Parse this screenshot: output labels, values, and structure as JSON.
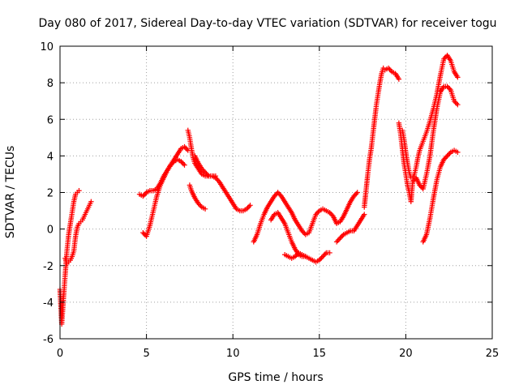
{
  "chart_data": {
    "type": "scatter",
    "title": "Day 080 of 2017, Sidereal Day-to-day VTEC variation (SDTVAR) for receiver togu",
    "xlabel": "GPS time / hours",
    "ylabel": "SDTVAR / TECUs",
    "xlim": [
      0,
      25
    ],
    "ylim": [
      -6,
      10
    ],
    "xticks": [
      "0",
      "5",
      "10",
      "15",
      "20",
      "25"
    ],
    "yticks": [
      "-6",
      "-4",
      "-2",
      "0",
      "2",
      "4",
      "6",
      "8",
      "10"
    ],
    "grid": true,
    "marker": "+",
    "color": "#ff0000",
    "segments": [
      {
        "x": [
          0.0,
          0.1,
          0.2,
          0.3,
          0.4,
          0.5,
          0.6,
          0.7,
          0.8,
          0.9,
          1.0,
          1.1
        ],
        "y": [
          -3.3,
          -5.2,
          -3.8,
          -2.5,
          -1.2,
          -0.3,
          0.3,
          0.9,
          1.5,
          1.9,
          2.0,
          2.1
        ]
      },
      {
        "x": [
          0.3,
          0.4,
          0.5,
          0.6,
          0.7,
          0.8,
          0.9,
          1.0,
          1.1,
          1.2,
          1.3,
          1.4,
          1.5,
          1.6,
          1.7,
          1.8
        ],
        "y": [
          -1.6,
          -1.9,
          -1.8,
          -1.7,
          -1.5,
          -1.2,
          -0.4,
          0.1,
          0.3,
          0.4,
          0.5,
          0.7,
          0.9,
          1.1,
          1.3,
          1.5
        ]
      },
      {
        "x": [
          4.6,
          4.8,
          5.0,
          5.2,
          5.4,
          5.6,
          5.8,
          6.0,
          6.2,
          6.4,
          6.6,
          6.8,
          7.0,
          7.2,
          7.4
        ],
        "y": [
          1.9,
          1.8,
          2.0,
          2.1,
          2.1,
          2.2,
          2.5,
          2.9,
          3.2,
          3.5,
          3.8,
          4.1,
          4.4,
          4.5,
          4.3
        ]
      },
      {
        "x": [
          4.8,
          5.0,
          5.2,
          5.4,
          5.6,
          5.8,
          6.0,
          6.2,
          6.4,
          6.6,
          6.8,
          7.0,
          7.2
        ],
        "y": [
          -0.2,
          -0.4,
          0.2,
          1.0,
          1.8,
          2.4,
          2.8,
          3.2,
          3.5,
          3.7,
          3.8,
          3.7,
          3.5
        ]
      },
      {
        "x": [
          7.4,
          7.5,
          7.6,
          7.7,
          7.8,
          8.0,
          8.2,
          8.4,
          8.6,
          8.8,
          9.0,
          9.2,
          9.4,
          9.6,
          9.8,
          10.0,
          10.2,
          10.4,
          10.6,
          10.8,
          11.0
        ],
        "y": [
          5.4,
          5.0,
          4.4,
          3.9,
          3.6,
          3.3,
          3.0,
          2.9,
          2.9,
          2.9,
          2.8,
          2.6,
          2.3,
          2.0,
          1.7,
          1.4,
          1.1,
          1.0,
          1.0,
          1.1,
          1.3
        ]
      },
      {
        "x": [
          7.5,
          7.6,
          7.8,
          8.0,
          8.2,
          8.4
        ],
        "y": [
          2.4,
          2.1,
          1.7,
          1.4,
          1.2,
          1.1
        ]
      },
      {
        "x": [
          7.8,
          8.0,
          8.2,
          8.4,
          8.6,
          8.8,
          9.0
        ],
        "y": [
          4.0,
          3.6,
          3.3,
          3.1,
          2.9,
          2.9,
          2.9
        ]
      },
      {
        "x": [
          11.2,
          11.4,
          11.6,
          11.8,
          12.0,
          12.2,
          12.4,
          12.6,
          12.8,
          13.0,
          13.2,
          13.4,
          13.6,
          13.8,
          14.0,
          14.2,
          14.4,
          14.6,
          14.8,
          15.0,
          15.2,
          15.4,
          15.6,
          15.8,
          16.0,
          16.2,
          16.4,
          16.6,
          16.8,
          17.0,
          17.2
        ],
        "y": [
          -0.7,
          -0.3,
          0.3,
          0.8,
          1.2,
          1.5,
          1.8,
          2.0,
          1.8,
          1.5,
          1.2,
          0.9,
          0.5,
          0.2,
          -0.1,
          -0.3,
          -0.2,
          0.3,
          0.8,
          1.0,
          1.1,
          1.0,
          0.9,
          0.7,
          0.3,
          0.4,
          0.7,
          1.1,
          1.5,
          1.8,
          2.0
        ]
      },
      {
        "x": [
          12.2,
          12.4,
          12.6,
          12.8,
          13.0,
          13.2,
          13.4,
          13.6,
          13.8,
          14.0,
          14.2,
          14.4,
          14.6,
          14.8,
          15.0,
          15.2,
          15.4,
          15.6
        ],
        "y": [
          0.5,
          0.8,
          0.9,
          0.6,
          0.3,
          -0.2,
          -0.7,
          -1.1,
          -1.4,
          -1.5,
          -1.5,
          -1.6,
          -1.7,
          -1.8,
          -1.7,
          -1.5,
          -1.3,
          -1.3
        ]
      },
      {
        "x": [
          13.0,
          13.2,
          13.4,
          13.6,
          13.8,
          14.0,
          14.2
        ],
        "y": [
          -1.4,
          -1.5,
          -1.6,
          -1.5,
          -1.3,
          -1.4,
          -1.5
        ]
      },
      {
        "x": [
          16.0,
          16.2,
          16.4,
          16.6,
          16.8,
          17.0,
          17.2,
          17.4,
          17.6
        ],
        "y": [
          -0.7,
          -0.5,
          -0.3,
          -0.2,
          -0.1,
          -0.1,
          0.2,
          0.5,
          0.8
        ]
      },
      {
        "x": [
          17.6,
          17.8,
          17.9,
          18.0,
          18.1,
          18.2,
          18.3,
          18.4,
          18.5,
          18.6,
          18.7,
          18.8,
          19.0,
          19.2,
          19.4,
          19.6
        ],
        "y": [
          1.2,
          3.0,
          3.8,
          4.4,
          5.2,
          6.0,
          6.8,
          7.4,
          8.0,
          8.5,
          8.8,
          8.7,
          8.8,
          8.6,
          8.5,
          8.2
        ]
      },
      {
        "x": [
          19.6,
          19.7,
          19.8,
          19.9,
          20.0,
          20.1,
          20.2,
          20.3,
          20.4,
          20.6,
          20.8,
          21.0,
          21.2,
          21.4,
          21.6,
          21.8,
          22.0,
          22.2,
          22.4,
          22.6,
          22.8,
          23.0
        ],
        "y": [
          5.8,
          5.2,
          4.4,
          3.6,
          3.0,
          2.4,
          2.0,
          1.5,
          2.6,
          2.8,
          2.4,
          2.2,
          3.0,
          4.0,
          5.4,
          6.6,
          7.5,
          7.8,
          7.8,
          7.6,
          7.0,
          6.8
        ]
      },
      {
        "x": [
          19.8,
          19.9,
          20.0,
          20.1,
          20.2,
          20.3,
          20.4,
          20.5,
          20.6,
          20.7,
          20.8,
          21.0,
          21.2,
          21.4,
          21.6,
          21.8,
          22.0,
          22.2,
          22.4,
          22.6,
          22.8,
          23.0
        ],
        "y": [
          5.4,
          4.9,
          4.2,
          3.6,
          3.1,
          2.8,
          2.8,
          3.0,
          3.4,
          3.9,
          4.3,
          4.8,
          5.3,
          5.9,
          6.6,
          7.4,
          8.4,
          9.3,
          9.5,
          9.2,
          8.6,
          8.3
        ]
      },
      {
        "x": [
          21.0,
          21.2,
          21.4,
          21.6,
          21.8,
          22.0,
          22.2,
          22.4,
          22.6,
          22.8,
          23.0
        ],
        "y": [
          -0.7,
          -0.3,
          0.6,
          1.7,
          2.7,
          3.4,
          3.8,
          4.0,
          4.2,
          4.3,
          4.2
        ]
      }
    ]
  }
}
